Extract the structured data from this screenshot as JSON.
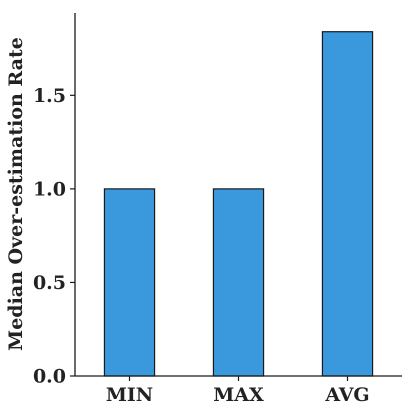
{
  "chart_data": {
    "type": "bar",
    "categories": [
      "MIN",
      "MAX",
      "AVG"
    ],
    "values": [
      1.0,
      1.0,
      1.84
    ],
    "title": "",
    "xlabel": "",
    "ylabel": "Median Over-estimation Rate",
    "ylim": [
      0,
      1.94
    ],
    "yticks": [
      0.0,
      0.5,
      1.0,
      1.5
    ],
    "ytick_labels": [
      "0.0",
      "0.5",
      "1.0",
      "1.5"
    ],
    "grid": false,
    "legend": "none",
    "colors": {
      "bar_fill": "#3a98dd",
      "bar_edge": "#1a1a1a",
      "axis": "#1a1a1a",
      "text": "#222222"
    }
  }
}
